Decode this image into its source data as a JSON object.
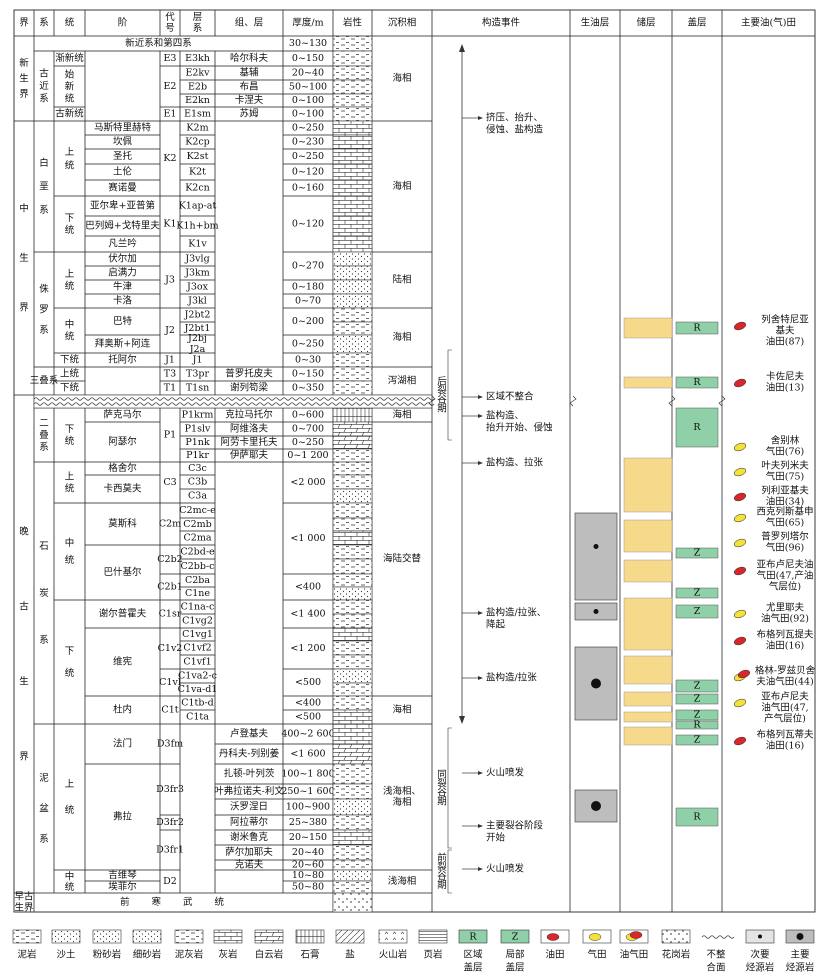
{
  "header": [
    "界",
    "系",
    "统",
    "阶",
    [
      "代",
      "号"
    ],
    [
      "层",
      "系"
    ],
    "组、层",
    "厚度/m",
    "岩性",
    "沉积相",
    "构造事件",
    "生油层",
    "储层",
    "盖层",
    "主要油(气)田"
  ],
  "top_unit": "新近系和第四系",
  "base_unit": "前寒武统",
  "era": [
    "新生界",
    "中生界",
    "晚古生界",
    [
      "早古",
      "生界"
    ]
  ],
  "system": [
    "古近系",
    "白垩系",
    "侏罗系",
    "三叠系",
    "二叠系",
    "石炭系",
    "泥盆系"
  ],
  "series": [
    "渐新统",
    "始新统",
    "古新统",
    "上统",
    "下统",
    "上统",
    "中统",
    "下统",
    "上统",
    "下统",
    "下统",
    "上统",
    "中统",
    "下统",
    "上统",
    "中统"
  ],
  "stage": [
    "马斯特里赫特",
    "坎佩",
    "圣托",
    "土伦",
    "赛诺曼",
    "亚尔卑+亚普第",
    "巴列姆+戈特里夫",
    "凡兰吟",
    "伏尔加",
    "启满力",
    "牛津",
    "卡洛",
    "巴特",
    "拜奥斯+阿连",
    "托阿尔",
    "萨克马尔",
    "阿瑟尔",
    "格舍尔",
    "卡西莫夫",
    "莫斯科",
    "巴什基尔",
    "谢尔普霍夫",
    "维宪",
    "杜内",
    "法门",
    "弗拉",
    "吉维琴",
    "埃菲尔"
  ],
  "code": [
    "E3",
    "E2",
    "E1",
    "K2",
    "K1",
    "J3",
    "J2",
    "J1",
    "T3",
    "T1",
    "P1",
    "C3",
    "C2m",
    "C2b2",
    "C2b1",
    "C1sr",
    "C1v2",
    "C1vl",
    "C1t",
    "D3fm",
    "D3fr3",
    "D3fr2",
    "D3fr1",
    "D2"
  ],
  "layer": [
    "E3kh",
    "E2kv",
    "E2b",
    "E2kn",
    "E1sm",
    "K2m",
    "K2cp",
    "K2st",
    "K2t",
    "K2cn",
    "K1ap-at",
    "K1h+bm",
    "K1v",
    "J3vlg",
    "J3km",
    "J3ox",
    "J3kl",
    "J2bt2",
    "J2bt1",
    [
      "J2bj",
      "J2a"
    ],
    "J1",
    "T3pr",
    "T1sn",
    "P1krm",
    "P1slv",
    "P1nk",
    "P1kr",
    "C3c",
    "C3b",
    "C3a",
    "C2mc-e",
    "C2mb",
    "C2ma",
    "C2bd-e",
    "C2bb-c",
    "C2ba",
    "C1ne",
    "C1na-c",
    "C1vg2",
    "C1vg1",
    "C1vf2",
    "C1vf1",
    "C1va2-c",
    "C1va-d1",
    "C1tb-d",
    "C1ta"
  ],
  "formation": [
    "哈尔科夫",
    "基辅",
    "布昌",
    "卡涅夫",
    "苏姆",
    "普罗托皮夫",
    "谢列笱梁",
    "克拉马托尔",
    "阿维洛夫",
    "阿劳卡里托夫",
    "伊萨耶夫",
    "卢登基夫",
    "丹科夫-列别姜",
    "扎顿-叶列茨",
    "叶弗拉诺夫-利文",
    "沃罗涅日",
    "阿拉蒂尔",
    "谢米鲁克",
    "萨尔加耶夫",
    "克诺夫"
  ],
  "thickness": [
    "30~130",
    "0~150",
    "20~40",
    "50~100",
    "0~100",
    "0~100",
    "0~250",
    "0~230",
    "0~250",
    "0~120",
    "0~160",
    "0~120",
    "0~270",
    "0~180",
    "0~70",
    "0~200",
    "0~250",
    "0~30",
    "0~150",
    "0~350",
    "0~600",
    "0~700",
    "0~250",
    "0~1 200",
    "<2 000",
    "<1 000",
    "<400",
    "<1 400",
    "<1 200",
    "<500",
    "<400",
    "<500",
    "400~2 600",
    "<1 600",
    "100~1 800",
    "250~1 600",
    "100~900",
    "25~380",
    "20~150",
    "20~40",
    "20~60",
    "10~80",
    "50~80"
  ],
  "facies": [
    "海相",
    "海相",
    "陆相",
    "海相",
    "泻湖相",
    "海相",
    "海陆交替",
    "海相",
    [
      "浅海相、",
      "海相"
    ],
    "浅海相"
  ],
  "events": [
    [
      "挤压、抬升、",
      "侵蚀、盐构造"
    ],
    [
      "区域不整合"
    ],
    [
      "盐构造、",
      "抬升开始、侵蚀"
    ],
    [
      "盐构造、拉张"
    ],
    [
      "盐构造/拉张、",
      "降起"
    ],
    [
      "盐构造/拉张"
    ],
    [
      "火山喷发"
    ],
    [
      "主要裂谷阶段",
      "开始"
    ],
    [
      "火山喷发"
    ]
  ],
  "phases": [
    "后裂谷期",
    "同裂谷期",
    "前裂谷期"
  ],
  "cap_rock_labels": [
    "R",
    "R",
    "R",
    "Z",
    "Z",
    "Z",
    "Z",
    "Z",
    "Z",
    "R",
    "Z",
    "R"
  ],
  "fields": [
    {
      "lines": [
        "列舍特尼亚",
        "基夫",
        "油田(87)"
      ],
      "colors": [
        "#d8262b"
      ]
    },
    {
      "lines": [
        "卡佐尼夫",
        "油田(13)"
      ],
      "colors": [
        "#d8262b"
      ]
    },
    {
      "lines": [
        "舍别林",
        "气田(76)"
      ],
      "colors": [
        "#f3e23a"
      ]
    },
    {
      "lines": [
        "叶夫列米夫",
        "气田(75)"
      ],
      "colors": [
        "#f3e23a"
      ]
    },
    {
      "lines": [
        "列利亚基夫",
        "油田(34)"
      ],
      "colors": [
        "#d8262b"
      ]
    },
    {
      "lines": [
        "西克列斯基申",
        "气田(65)"
      ],
      "colors": [
        "#f3e23a"
      ]
    },
    {
      "lines": [
        "普罗列塔尔",
        "气田(96)"
      ],
      "colors": [
        "#f3e23a"
      ]
    },
    {
      "lines": [
        "亚布卢尼夫油",
        "气田(47,产油",
        "气层位)"
      ],
      "colors": [
        "#d8262b"
      ]
    },
    {
      "lines": [
        "尤里耶夫",
        "油气田(92)"
      ],
      "colors": [
        "#f3e23a"
      ]
    },
    {
      "lines": [
        "布格列瓦提夫",
        "油田(16)"
      ],
      "colors": [
        "#d8262b"
      ]
    },
    {
      "lines": [
        "格林-罗兹贝舍",
        "夫油气田(44)"
      ],
      "colors": [
        "#f3e23a",
        "#d8262b"
      ]
    },
    {
      "lines": [
        "亚布卢尼夫",
        "油气田(47,",
        "产气层位)"
      ],
      "colors": [
        "#f3e23a"
      ]
    },
    {
      "lines": [
        "布格列瓦蒂夫",
        "油田(16)"
      ],
      "colors": [
        "#d8262b"
      ]
    }
  ],
  "legend": [
    {
      "label": [
        "泥岩"
      ]
    },
    {
      "label": [
        "沙土"
      ]
    },
    {
      "label": [
        "粉砂岩"
      ]
    },
    {
      "label": [
        "细砂岩"
      ]
    },
    {
      "label": [
        "泥灰岩"
      ]
    },
    {
      "label": [
        "灰岩"
      ]
    },
    {
      "label": [
        "白云岩"
      ]
    },
    {
      "label": [
        "石膏"
      ]
    },
    {
      "label": [
        "盐"
      ]
    },
    {
      "label": [
        "火山岩"
      ]
    },
    {
      "label": [
        "页岩"
      ]
    },
    {
      "label": [
        "区域",
        "盖层"
      ],
      "mark": "R"
    },
    {
      "label": [
        "局部",
        "盖层"
      ],
      "mark": "Z"
    },
    {
      "label": [
        "油田"
      ]
    },
    {
      "label": [
        "气田"
      ]
    },
    {
      "label": [
        "油气田"
      ]
    },
    {
      "label": [
        "花岗岩"
      ]
    },
    {
      "label": [
        "不整",
        "合面"
      ]
    },
    {
      "label": [
        "次要",
        "烃源岩"
      ]
    },
    {
      "label": [
        "主要",
        "烃源岩"
      ]
    }
  ]
}
